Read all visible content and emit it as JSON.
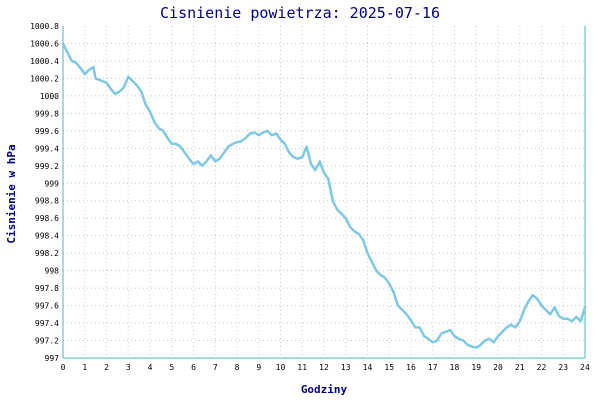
{
  "chart_data": {
    "type": "line",
    "title": "Cisnienie powietrza: 2025-07-16",
    "xlabel": "Godziny",
    "ylabel": "Cisnienie w hPa",
    "xlim": [
      0,
      24
    ],
    "ylim": [
      997,
      1000.8
    ],
    "x_ticks": [
      "0",
      "1",
      "2",
      "3",
      "4",
      "5",
      "6",
      "7",
      "8",
      "9",
      "10",
      "11",
      "12",
      "13",
      "14",
      "15",
      "16",
      "17",
      "18",
      "19",
      "20",
      "21",
      "22",
      "23",
      "24"
    ],
    "y_ticks": [
      "997",
      "997.2",
      "997.4",
      "997.6",
      "997.8",
      "998",
      "998.2",
      "998.4",
      "998.6",
      "998.8",
      "999",
      "999.2",
      "999.4",
      "999.6",
      "999.8",
      "1000",
      "1000.2",
      "1000.4",
      "1000.6",
      "1000.8"
    ],
    "grid": true,
    "series": [
      {
        "color": "#7ec8e3",
        "x": [
          0,
          0.2,
          0.4,
          0.6,
          0.8,
          1.0,
          1.2,
          1.4,
          1.5,
          1.8,
          2.0,
          2.2,
          2.4,
          2.6,
          2.8,
          3.0,
          3.2,
          3.4,
          3.6,
          3.8,
          4.0,
          4.2,
          4.4,
          4.6,
          4.8,
          5.0,
          5.2,
          5.4,
          5.6,
          5.8,
          6.0,
          6.2,
          6.4,
          6.6,
          6.8,
          7.0,
          7.2,
          7.4,
          7.6,
          7.8,
          8.0,
          8.2,
          8.4,
          8.6,
          8.8,
          9.0,
          9.2,
          9.4,
          9.6,
          9.8,
          10.0,
          10.2,
          10.4,
          10.6,
          10.8,
          11.0,
          11.2,
          11.4,
          11.6,
          11.8,
          12.0,
          12.2,
          12.4,
          12.6,
          12.8,
          13.0,
          13.2,
          13.4,
          13.6,
          13.8,
          14.0,
          14.2,
          14.4,
          14.6,
          14.8,
          15.0,
          15.2,
          15.4,
          15.6,
          15.8,
          16.0,
          16.2,
          16.4,
          16.6,
          16.8,
          17.0,
          17.2,
          17.4,
          17.6,
          17.8,
          18.0,
          18.2,
          18.4,
          18.6,
          18.8,
          19.0,
          19.2,
          19.4,
          19.6,
          19.8,
          20.0,
          20.2,
          20.4,
          20.6,
          20.8,
          21.0,
          21.2,
          21.4,
          21.6,
          21.8,
          22.0,
          22.2,
          22.4,
          22.6,
          22.8,
          23.0,
          23.2,
          23.4,
          23.6,
          23.8,
          24.0
        ],
        "y": [
          1000.6,
          1000.5,
          1000.4,
          1000.38,
          1000.32,
          1000.25,
          1000.3,
          1000.33,
          1000.2,
          1000.17,
          1000.15,
          1000.08,
          1000.02,
          1000.05,
          1000.1,
          1000.22,
          1000.17,
          1000.12,
          1000.05,
          999.9,
          999.82,
          999.7,
          999.63,
          999.6,
          999.52,
          999.45,
          999.45,
          999.42,
          999.35,
          999.28,
          999.22,
          999.25,
          999.2,
          999.25,
          999.32,
          999.25,
          999.28,
          999.35,
          999.42,
          999.45,
          999.47,
          999.48,
          999.52,
          999.57,
          999.58,
          999.55,
          999.58,
          999.6,
          999.55,
          999.57,
          999.5,
          999.45,
          999.35,
          999.3,
          999.28,
          999.3,
          999.42,
          999.22,
          999.15,
          999.25,
          999.12,
          999.05,
          998.8,
          998.7,
          998.65,
          998.6,
          998.5,
          998.45,
          998.42,
          998.35,
          998.2,
          998.1,
          998.0,
          997.95,
          997.92,
          997.85,
          997.75,
          997.6,
          997.55,
          997.5,
          997.43,
          997.35,
          997.35,
          997.25,
          997.22,
          997.18,
          997.2,
          997.28,
          997.3,
          997.32,
          997.25,
          997.22,
          997.2,
          997.15,
          997.13,
          997.12,
          997.15,
          997.2,
          997.22,
          997.18,
          997.25,
          997.3,
          997.35,
          997.38,
          997.35,
          997.42,
          997.55,
          997.65,
          997.72,
          997.68,
          997.6,
          997.55,
          997.5,
          997.58,
          997.48,
          997.45,
          997.45,
          997.42,
          997.47,
          997.42,
          997.58
        ]
      }
    ]
  }
}
